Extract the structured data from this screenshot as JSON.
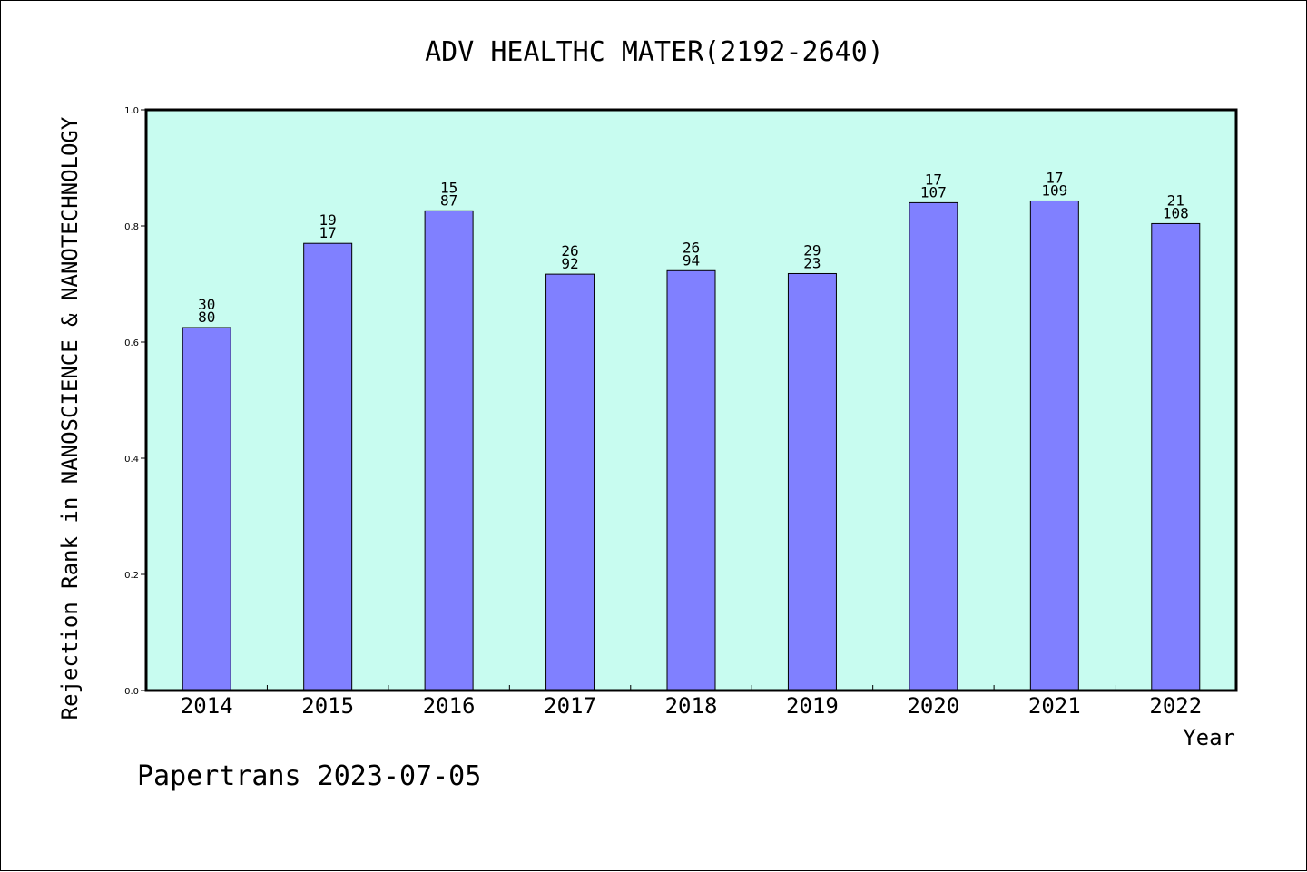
{
  "chart_data": {
    "type": "bar",
    "title": "ADV HEALTHC MATER(2192-2640)",
    "xlabel": "Year",
    "ylabel": "Rejection Rank in NANOSCIENCE & NANOTECHNOLOGY",
    "categories": [
      "2014",
      "2015",
      "2016",
      "2017",
      "2018",
      "2019",
      "2020",
      "2021",
      "2022"
    ],
    "values": [
      0.625,
      0.77,
      0.826,
      0.717,
      0.723,
      0.718,
      0.84,
      0.843,
      0.804
    ],
    "labels_top": [
      "30",
      "19",
      "15",
      "26",
      "26",
      "29",
      "17",
      "17",
      "21"
    ],
    "labels_bottom": [
      "80",
      "17",
      "87",
      "92",
      "94",
      "23",
      "107",
      "109",
      "108"
    ],
    "ylim": [
      0,
      1.0
    ],
    "yticks": [
      "0.0",
      "0.2",
      "0.4",
      "0.6",
      "0.8",
      "1.0"
    ],
    "grid": false,
    "legend": "none",
    "colors": {
      "bar": "#8080ff",
      "bar_edge": "#000000",
      "plot_background": "#c8fcf0",
      "frame": "#000000"
    }
  },
  "footer": {
    "text": "Papertrans 2023-07-05"
  }
}
